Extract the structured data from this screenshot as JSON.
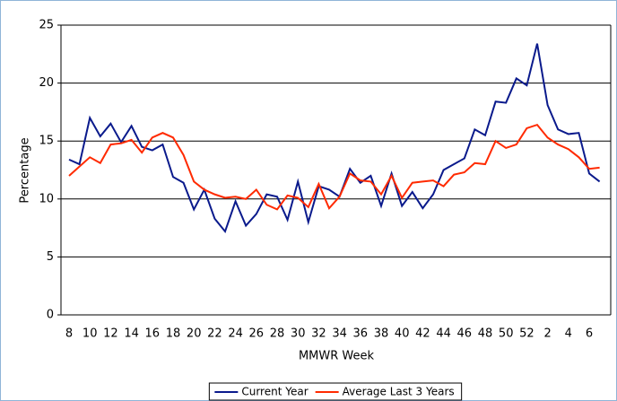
{
  "chart_data": {
    "type": "line",
    "x_label": "MMWR Week",
    "y_label": "Percentage",
    "categories": [
      "8",
      null,
      "10",
      null,
      "12",
      null,
      "14",
      null,
      "16",
      null,
      "18",
      null,
      "20",
      null,
      "22",
      null,
      "24",
      null,
      "26",
      null,
      "28",
      null,
      "30",
      null,
      "32",
      null,
      "34",
      null,
      "36",
      null,
      "38",
      null,
      "40",
      null,
      "42",
      null,
      "44",
      null,
      "46",
      null,
      "48",
      null,
      "50",
      null,
      "52",
      null,
      "2",
      null,
      "4",
      null,
      "6",
      null
    ],
    "series": [
      {
        "name": "Current Year",
        "color": "#0a1a8c",
        "values": [
          13.4,
          13.0,
          17.0,
          15.4,
          16.5,
          14.9,
          16.3,
          14.5,
          14.2,
          14.7,
          11.9,
          11.4,
          9.1,
          10.8,
          8.3,
          7.2,
          9.8,
          7.7,
          8.7,
          10.4,
          10.2,
          8.2,
          11.5,
          8.0,
          11.1,
          10.8,
          10.2,
          12.6,
          11.4,
          12.0,
          9.4,
          12.2,
          9.4,
          10.6,
          9.2,
          10.4,
          12.5,
          13.0,
          13.5,
          16.0,
          15.5,
          18.4,
          18.3,
          20.4,
          19.8,
          23.4,
          18.1,
          16.0,
          15.6,
          15.7,
          12.2,
          11.5
        ]
      },
      {
        "name": "Average Last 3 Years",
        "color": "#ff2a00",
        "values": [
          12.0,
          12.8,
          13.6,
          13.1,
          14.7,
          14.8,
          15.1,
          14.0,
          15.3,
          15.7,
          15.3,
          13.8,
          11.5,
          10.8,
          10.4,
          10.1,
          10.2,
          10.0,
          10.8,
          9.5,
          9.1,
          10.3,
          10.1,
          9.3,
          11.3,
          9.2,
          10.2,
          12.2,
          11.6,
          11.5,
          10.4,
          12.0,
          10.1,
          11.4,
          11.5,
          11.6,
          11.1,
          12.1,
          12.3,
          13.1,
          13.0,
          15.0,
          14.4,
          14.7,
          16.1,
          16.4,
          15.3,
          14.7,
          14.3,
          13.6,
          12.6,
          12.7
        ]
      }
    ],
    "ylim": [
      0,
      25
    ],
    "yticks": [
      0,
      5,
      10,
      15,
      20,
      25
    ],
    "grid": true,
    "legend": "bottom"
  }
}
